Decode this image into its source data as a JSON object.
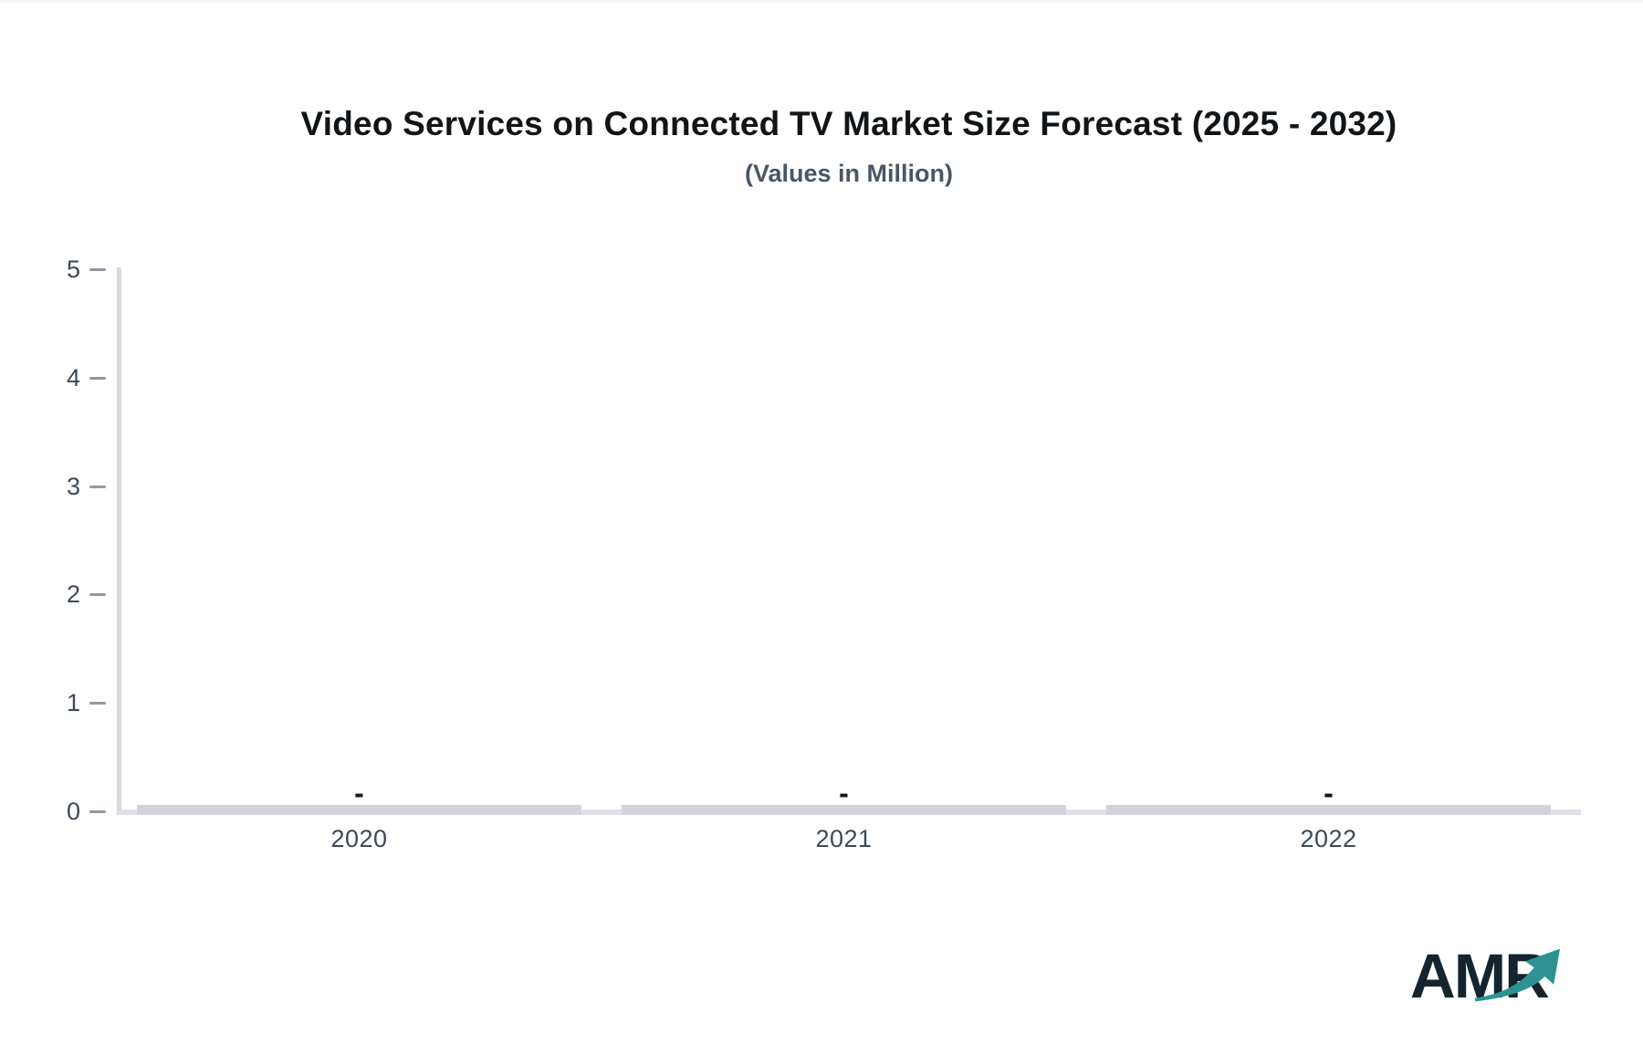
{
  "header": {
    "title": "Video Services on Connected TV Market Size Forecast (2025 - 2032)",
    "subtitle": "(Values in Million)"
  },
  "chart_data": {
    "type": "bar",
    "title": "Video Services on Connected TV Market Size Forecast (2025 - 2032)",
    "subtitle": "(Values in Million)",
    "categories": [
      "2020",
      "2021",
      "2022"
    ],
    "values": [
      null,
      null,
      null
    ],
    "value_labels": [
      "-",
      "-",
      "-"
    ],
    "xlabel": "",
    "ylabel": "",
    "ylim": [
      0,
      5
    ],
    "yticks": [
      0,
      1,
      2,
      3,
      4,
      5
    ],
    "grid": false,
    "legend": "none",
    "colors": {
      "bar": "#d2d4da",
      "axis_line": "#d8dade",
      "baseline": "#e0e2e7",
      "tick_mark": "#9099a6",
      "tick_label": "#3d4959",
      "title": "#111518",
      "subtitle": "#4b5663",
      "null_label": "#141519"
    }
  },
  "logo": {
    "text": "AMR",
    "text_color": "#142530",
    "arrow_icon": "trend-up-arrow",
    "arrow_color": "#2e9292"
  }
}
